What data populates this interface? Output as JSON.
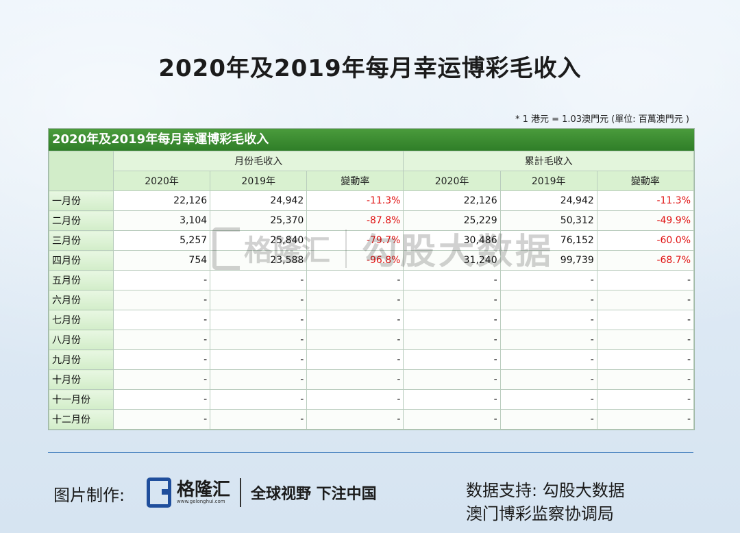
{
  "page_title": "2020年及2019年每月幸运博彩毛收入",
  "note": "* 1 港元 = 1.03澳門元 (單位: 百萬澳門元 )",
  "table": {
    "title": "2020年及2019年每月幸運博彩毛收入",
    "group_monthly": "月份毛收入",
    "group_cumulative": "累計毛收入",
    "sub_headers": [
      "2020年",
      "2019年",
      "變動率",
      "2020年",
      "2019年",
      "變動率"
    ],
    "rows": [
      {
        "month": "一月份",
        "cells": [
          "22,126",
          "24,942",
          "-11.3%",
          "22,126",
          "24,942",
          "-11.3%"
        ]
      },
      {
        "month": "二月份",
        "cells": [
          "3,104",
          "25,370",
          "-87.8%",
          "25,229",
          "50,312",
          "-49.9%"
        ]
      },
      {
        "month": "三月份",
        "cells": [
          "5,257",
          "25,840",
          "-79.7%",
          "30,486",
          "76,152",
          "-60.0%"
        ]
      },
      {
        "month": "四月份",
        "cells": [
          "754",
          "23,588",
          "-96.8%",
          "31,240",
          "99,739",
          "-68.7%"
        ]
      },
      {
        "month": "五月份",
        "cells": [
          "-",
          "-",
          "-",
          "-",
          "-",
          "-"
        ]
      },
      {
        "month": "六月份",
        "cells": [
          "-",
          "-",
          "-",
          "-",
          "-",
          "-"
        ]
      },
      {
        "month": "七月份",
        "cells": [
          "-",
          "-",
          "-",
          "-",
          "-",
          "-"
        ]
      },
      {
        "month": "八月份",
        "cells": [
          "-",
          "-",
          "-",
          "-",
          "-",
          "-"
        ]
      },
      {
        "month": "九月份",
        "cells": [
          "-",
          "-",
          "-",
          "-",
          "-",
          "-"
        ]
      },
      {
        "month": "十月份",
        "cells": [
          "-",
          "-",
          "-",
          "-",
          "-",
          "-"
        ]
      },
      {
        "month": "十一月份",
        "cells": [
          "-",
          "-",
          "-",
          "-",
          "-",
          "-"
        ]
      },
      {
        "month": "十二月份",
        "cells": [
          "-",
          "-",
          "-",
          "-",
          "-",
          "-"
        ]
      }
    ]
  },
  "watermark": {
    "brand": "格隆汇",
    "source": "勾股大数据"
  },
  "footer": {
    "credit_label": "图片制作:",
    "logo_name": "格隆汇",
    "logo_url": "www.gelonghui.com",
    "slogan": "全球视野 下注中国",
    "support_line1": "数据支持: 勾股大数据",
    "support_line2": "澳门博彩监察协调局"
  },
  "colors": {
    "header_green": "#2f7e28",
    "negative": "#e01010",
    "footer_line": "#5a8fc6"
  }
}
